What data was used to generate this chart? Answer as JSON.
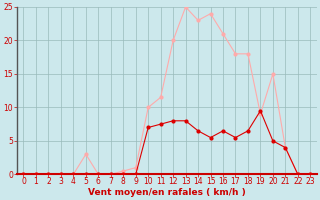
{
  "x": [
    0,
    1,
    2,
    3,
    4,
    5,
    6,
    7,
    8,
    9,
    10,
    11,
    12,
    13,
    14,
    15,
    16,
    17,
    18,
    19,
    20,
    21,
    22,
    23
  ],
  "y_rafales": [
    0,
    0,
    0,
    0,
    0,
    3,
    0,
    0,
    0.5,
    1,
    10,
    11.5,
    20,
    25,
    23,
    24,
    21,
    18,
    18,
    9,
    15,
    4,
    0,
    0
  ],
  "y_moyen": [
    0,
    0,
    0,
    0,
    0,
    0,
    0,
    0,
    0,
    0,
    7,
    7.5,
    8,
    8,
    6.5,
    5.5,
    6.5,
    5.5,
    6.5,
    9.5,
    5,
    4,
    0,
    0
  ],
  "color_rafales": "#ffaaaa",
  "color_moyen": "#dd0000",
  "bg_color": "#cce8ec",
  "grid_color": "#99bbbb",
  "xlabel": "Vent moyen/en rafales ( km/h )",
  "xlim": [
    -0.5,
    23.5
  ],
  "ylim": [
    0,
    25
  ],
  "yticks": [
    0,
    5,
    10,
    15,
    20,
    25
  ],
  "xticks": [
    0,
    1,
    2,
    3,
    4,
    5,
    6,
    7,
    8,
    9,
    10,
    11,
    12,
    13,
    14,
    15,
    16,
    17,
    18,
    19,
    20,
    21,
    22,
    23
  ],
  "tick_fontsize": 5.5,
  "xlabel_fontsize": 6.5
}
